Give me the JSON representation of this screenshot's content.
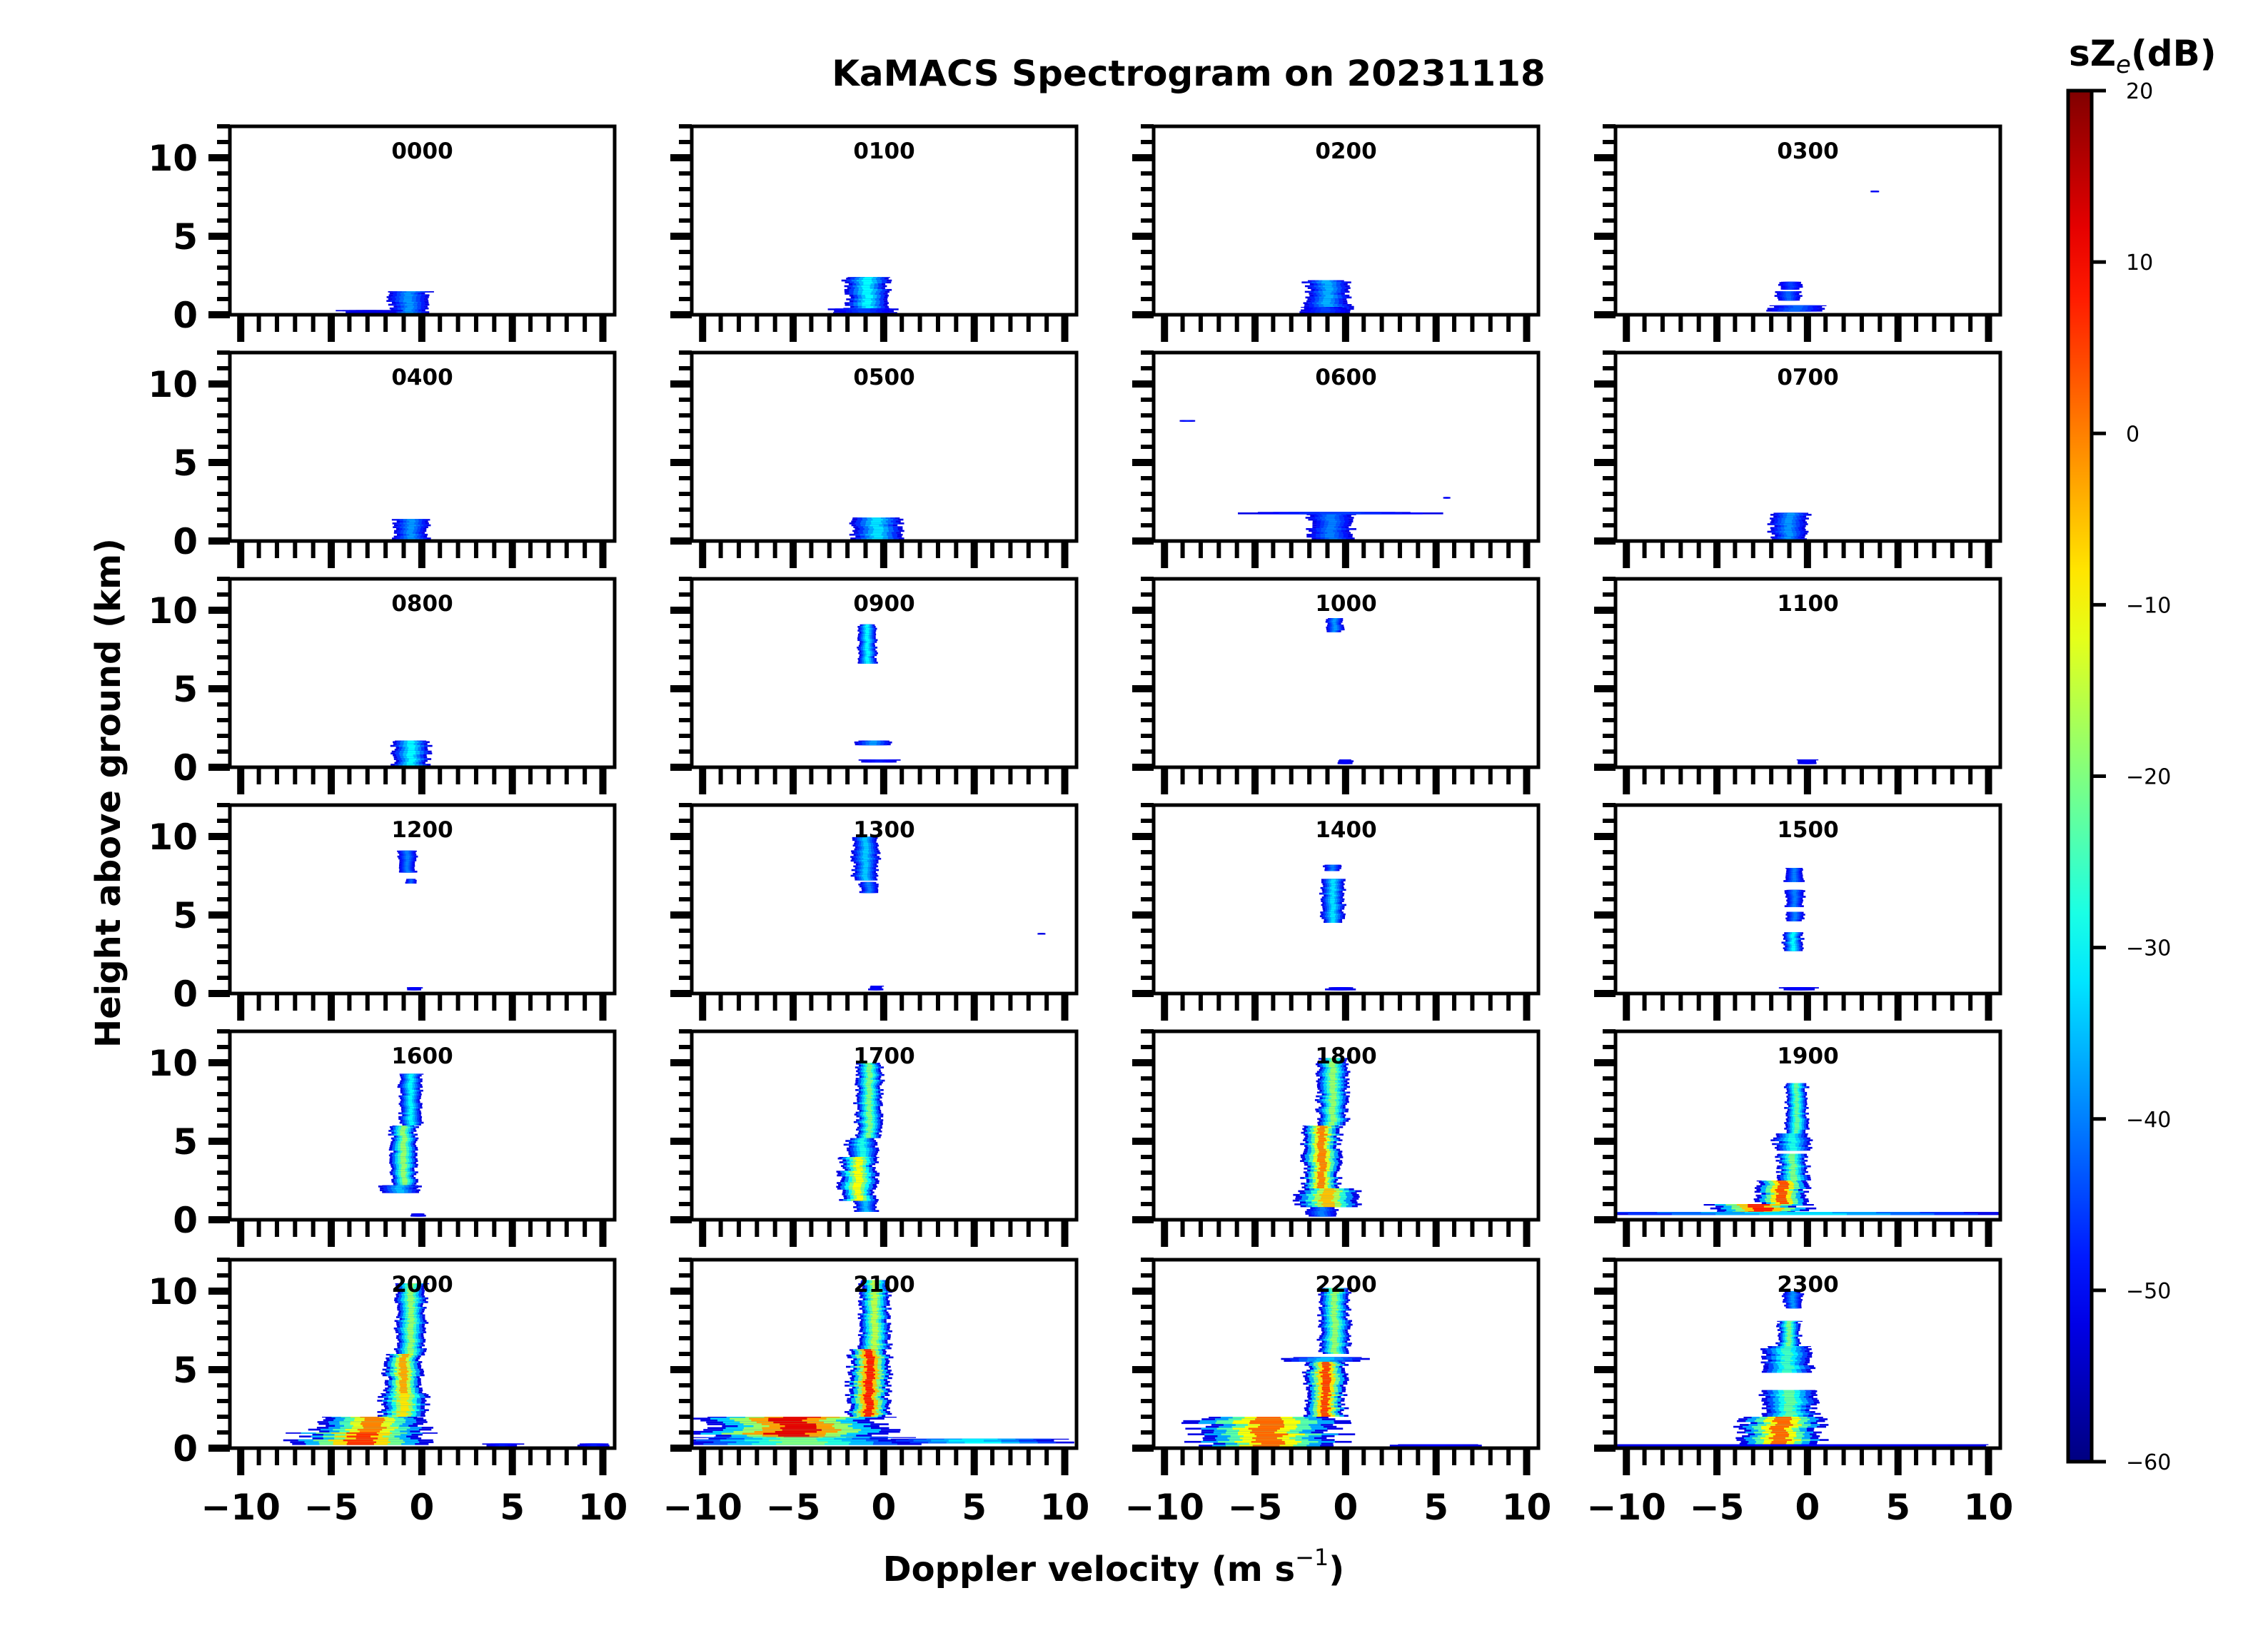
{
  "chart_data": {
    "type": "heatmap",
    "title": "KaMACS Spectrogram on 20231118",
    "xlabel": "Doppler velocity (m s",
    "xlabel_superscript": "−1",
    "xlabel_close": ")",
    "ylabel": "Height above ground (km)",
    "xlim": [
      -10.6,
      10.65
    ],
    "ylim": [
      0,
      12
    ],
    "x_major_ticks": [
      -10,
      -5,
      0,
      5,
      10
    ],
    "x_tick_labels": [
      "−10",
      "−5",
      "0",
      "5",
      "10"
    ],
    "x_minor_step": 1,
    "y_major_ticks": [
      0,
      5,
      10
    ],
    "y_tick_labels": [
      "0",
      "5",
      "10"
    ],
    "y_minor_step": 1,
    "grid": false,
    "layout": {
      "rows": 6,
      "cols": 4
    },
    "colorbar": {
      "title_main": "sZ",
      "title_sub": "e",
      "title_unit": "(dB)",
      "colormap": "jet",
      "range": [
        -60,
        20
      ],
      "ticks": [
        20,
        10,
        0,
        -10,
        -20,
        -30,
        -40,
        -50,
        -60
      ],
      "tick_labels": [
        "20",
        "10",
        "0",
        "−10",
        "−20",
        "−30",
        "−40",
        "−50",
        "−60"
      ],
      "placement": "right"
    },
    "panels": [
      {
        "label": "0000",
        "layers": [
          {
            "h": [
              0.1,
              1.5
            ],
            "v": -0.7,
            "w": 1.1,
            "dbz": -38
          },
          {
            "h": [
              0.1,
              0.3
            ],
            "v": -2.8,
            "w": 1.6,
            "dbz": -52
          }
        ]
      },
      {
        "label": "0100",
        "layers": [
          {
            "h": [
              0.2,
              2.4
            ],
            "v": -0.9,
            "w": 1.2,
            "dbz": -30
          },
          {
            "h": [
              0.05,
              0.4
            ],
            "v": -1.0,
            "w": 1.8,
            "dbz": -45
          }
        ]
      },
      {
        "label": "0200",
        "layers": [
          {
            "h": [
              0.2,
              2.2
            ],
            "v": -1.0,
            "w": 1.2,
            "dbz": -36
          },
          {
            "h": [
              0.1,
              0.5
            ],
            "v": -1.2,
            "w": 1.3,
            "dbz": -45
          }
        ]
      },
      {
        "label": "0300",
        "layers": [
          {
            "h": [
              1.6,
              2.1
            ],
            "v": -0.9,
            "w": 0.6,
            "dbz": -45
          },
          {
            "h": [
              0.9,
              1.5
            ],
            "v": -1.0,
            "w": 0.7,
            "dbz": -42
          },
          {
            "h": [
              0.2,
              0.6
            ],
            "v": -0.6,
            "w": 1.6,
            "dbz": -42
          },
          {
            "h": [
              7.8,
              7.9
            ],
            "v": 3.7,
            "w": 0.25,
            "dbz": -50
          }
        ]
      },
      {
        "label": "0400",
        "layers": [
          {
            "h": [
              0.1,
              1.4
            ],
            "v": -0.6,
            "w": 1.0,
            "dbz": -38
          }
        ]
      },
      {
        "label": "0500",
        "layers": [
          {
            "h": [
              0.1,
              1.5
            ],
            "v": -0.4,
            "w": 1.3,
            "dbz": -32
          }
        ]
      },
      {
        "label": "0600",
        "layers": [
          {
            "h": [
              1.7,
              1.85
            ],
            "v": -0.5,
            "w": 5.0,
            "dbz": -45
          },
          {
            "h": [
              0.1,
              1.7
            ],
            "v": -0.8,
            "w": 1.2,
            "dbz": -40
          },
          {
            "h": [
              7.6,
              7.7
            ],
            "v": -8.7,
            "w": 0.5,
            "dbz": -48
          },
          {
            "h": [
              2.7,
              2.8
            ],
            "v": 5.6,
            "w": 0.2,
            "dbz": -50
          }
        ]
      },
      {
        "label": "0700",
        "layers": [
          {
            "h": [
              0.05,
              1.8
            ],
            "v": -1.0,
            "w": 1.0,
            "dbz": -38
          }
        ]
      },
      {
        "label": "0800",
        "layers": [
          {
            "h": [
              0.1,
              1.7
            ],
            "v": -0.6,
            "w": 1.0,
            "dbz": -30
          }
        ]
      },
      {
        "label": "0900",
        "layers": [
          {
            "h": [
              6.6,
              9.1
            ],
            "v": -0.9,
            "w": 0.5,
            "dbz": -30
          },
          {
            "h": [
              1.4,
              1.7
            ],
            "v": -0.5,
            "w": 1.0,
            "dbz": -38
          },
          {
            "h": [
              0.3,
              0.5
            ],
            "v": -0.3,
            "w": 1.0,
            "dbz": -48
          }
        ]
      },
      {
        "label": "1000",
        "layers": [
          {
            "h": [
              8.6,
              9.5
            ],
            "v": -0.6,
            "w": 0.45,
            "dbz": -38
          },
          {
            "h": [
              0.2,
              0.5
            ],
            "v": 0.0,
            "w": 0.4,
            "dbz": -50
          }
        ]
      },
      {
        "label": "1100",
        "layers": [
          {
            "h": [
              0.2,
              0.5
            ],
            "v": 0.0,
            "w": 0.6,
            "dbz": -50
          }
        ]
      },
      {
        "label": "1200",
        "layers": [
          {
            "h": [
              7.7,
              9.1
            ],
            "v": -0.8,
            "w": 0.5,
            "dbz": -40
          },
          {
            "h": [
              7.0,
              7.3
            ],
            "v": -0.6,
            "w": 0.3,
            "dbz": -42
          },
          {
            "h": [
              0.2,
              0.4
            ],
            "v": -0.4,
            "w": 0.4,
            "dbz": -50
          }
        ]
      },
      {
        "label": "1300",
        "layers": [
          {
            "h": [
              7.2,
              10.0
            ],
            "v": -1.0,
            "w": 0.7,
            "dbz": -34
          },
          {
            "h": [
              6.4,
              7.1
            ],
            "v": -0.8,
            "w": 0.5,
            "dbz": -40
          },
          {
            "h": [
              3.75,
              3.85
            ],
            "v": 8.7,
            "w": 0.2,
            "dbz": -52
          },
          {
            "h": [
              0.2,
              0.5
            ],
            "v": -0.4,
            "w": 0.4,
            "dbz": -50
          }
        ]
      },
      {
        "label": "1400",
        "layers": [
          {
            "h": [
              7.8,
              8.2
            ],
            "v": -0.7,
            "w": 0.5,
            "dbz": -40
          },
          {
            "h": [
              4.5,
              7.3
            ],
            "v": -0.7,
            "w": 0.6,
            "dbz": -32
          },
          {
            "h": [
              0.2,
              0.4
            ],
            "v": -0.3,
            "w": 0.8,
            "dbz": -50
          }
        ]
      },
      {
        "label": "1500",
        "layers": [
          {
            "h": [
              7.1,
              8.0
            ],
            "v": -0.7,
            "w": 0.5,
            "dbz": -40
          },
          {
            "h": [
              5.5,
              6.6
            ],
            "v": -0.7,
            "w": 0.5,
            "dbz": -40
          },
          {
            "h": [
              4.6,
              5.2
            ],
            "v": -0.7,
            "w": 0.5,
            "dbz": -40
          },
          {
            "h": [
              2.7,
              3.9
            ],
            "v": -0.8,
            "w": 0.5,
            "dbz": -30
          },
          {
            "h": [
              0.2,
              0.4
            ],
            "v": -0.4,
            "w": 1.0,
            "dbz": -50
          }
        ]
      },
      {
        "label": "1600",
        "layers": [
          {
            "h": [
              6.0,
              9.3
            ],
            "v": -0.6,
            "w": 0.6,
            "dbz": -30
          },
          {
            "h": [
              2.0,
              6.0
            ],
            "v": -1.0,
            "w": 0.7,
            "dbz": -18
          },
          {
            "h": [
              1.7,
              2.2
            ],
            "v": -1.2,
            "w": 1.1,
            "dbz": -35
          },
          {
            "h": [
              0.2,
              0.4
            ],
            "v": -0.2,
            "w": 0.4,
            "dbz": -50
          }
        ]
      },
      {
        "label": "1700",
        "layers": [
          {
            "h": [
              5.2,
              10.0
            ],
            "v": -0.8,
            "w": 0.7,
            "dbz": -20
          },
          {
            "h": [
              4.0,
              5.2
            ],
            "v": -1.2,
            "w": 0.8,
            "dbz": -28
          },
          {
            "h": [
              1.2,
              4.0
            ],
            "v": -1.4,
            "w": 1.0,
            "dbz": -10
          },
          {
            "h": [
              0.5,
              1.2
            ],
            "v": -1.0,
            "w": 0.6,
            "dbz": -35
          }
        ]
      },
      {
        "label": "1800",
        "layers": [
          {
            "h": [
              6.0,
              10.3
            ],
            "v": -0.7,
            "w": 0.8,
            "dbz": -18
          },
          {
            "h": [
              2.0,
              6.0
            ],
            "v": -1.3,
            "w": 1.0,
            "dbz": 0
          },
          {
            "h": [
              0.8,
              2.0
            ],
            "v": -1.0,
            "w": 1.6,
            "dbz": -5
          },
          {
            "h": [
              0.2,
              0.8
            ],
            "v": -1.3,
            "w": 0.8,
            "dbz": -40
          }
        ]
      },
      {
        "label": "1900",
        "layers": [
          {
            "h": [
              5.5,
              8.7
            ],
            "v": -0.6,
            "w": 0.6,
            "dbz": -22
          },
          {
            "h": [
              4.4,
              5.5
            ],
            "v": -0.8,
            "w": 1.0,
            "dbz": -28
          },
          {
            "h": [
              2.5,
              4.2
            ],
            "v": -0.8,
            "w": 0.8,
            "dbz": -20
          },
          {
            "h": [
              1.0,
              2.5
            ],
            "v": -1.4,
            "w": 1.4,
            "dbz": 4
          },
          {
            "h": [
              0.3,
              1.0
            ],
            "v": -2.6,
            "w": 2.6,
            "dbz": 8
          },
          {
            "h": [
              0.3,
              0.5
            ],
            "v": 0.0,
            "w": 10.5,
            "dbz": -32
          }
        ]
      },
      {
        "label": "2000",
        "layers": [
          {
            "h": [
              6.0,
              10.5
            ],
            "v": -0.6,
            "w": 0.8,
            "dbz": -18
          },
          {
            "h": [
              3.5,
              6.0
            ],
            "v": -1.0,
            "w": 1.0,
            "dbz": -3
          },
          {
            "h": [
              2.0,
              3.5
            ],
            "v": -1.0,
            "w": 1.3,
            "dbz": -8
          },
          {
            "h": [
              1.0,
              2.0
            ],
            "v": -2.6,
            "w": 2.9,
            "dbz": 0
          },
          {
            "h": [
              0.2,
              1.0
            ],
            "v": -3.2,
            "w": 3.6,
            "dbz": 6
          },
          {
            "h": [
              0.1,
              0.3
            ],
            "v": 4.5,
            "w": 1.0,
            "dbz": -48
          },
          {
            "h": [
              0.1,
              0.3
            ],
            "v": 9.5,
            "w": 0.8,
            "dbz": -48
          }
        ]
      },
      {
        "label": "2100",
        "layers": [
          {
            "h": [
              6.3,
              10.7
            ],
            "v": -0.5,
            "w": 0.8,
            "dbz": -15
          },
          {
            "h": [
              2.0,
              6.3
            ],
            "v": -0.8,
            "w": 1.1,
            "dbz": 8
          },
          {
            "h": [
              0.5,
              2.0
            ],
            "v": -5.0,
            "w": 5.0,
            "dbz": 12
          },
          {
            "h": [
              0.2,
              0.7
            ],
            "v": -4.5,
            "w": 6.0,
            "dbz": -20
          },
          {
            "h": [
              0.3,
              0.6
            ],
            "v": 5.0,
            "w": 5.5,
            "dbz": -30
          }
        ]
      },
      {
        "label": "2200",
        "layers": [
          {
            "h": [
              6.0,
              10.2
            ],
            "v": -0.6,
            "w": 0.8,
            "dbz": -18
          },
          {
            "h": [
              5.5,
              5.8
            ],
            "v": -1.2,
            "w": 2.2,
            "dbz": -35
          },
          {
            "h": [
              2.0,
              5.5
            ],
            "v": -1.1,
            "w": 1.1,
            "dbz": 5
          },
          {
            "h": [
              0.1,
              2.0
            ],
            "v": -4.2,
            "w": 4.0,
            "dbz": 2
          },
          {
            "h": [
              0.1,
              0.25
            ],
            "v": 5.0,
            "w": 2.5,
            "dbz": -50
          }
        ]
      },
      {
        "label": "2300",
        "layers": [
          {
            "h": [
              8.9,
              10.0
            ],
            "v": -0.8,
            "w": 0.5,
            "dbz": -38
          },
          {
            "h": [
              6.5,
              8.1
            ],
            "v": -1.0,
            "w": 0.6,
            "dbz": -20
          },
          {
            "h": [
              4.8,
              6.5
            ],
            "v": -1.1,
            "w": 1.3,
            "dbz": -25
          },
          {
            "h": [
              2.0,
              3.7
            ],
            "v": -1.0,
            "w": 1.4,
            "dbz": -22
          },
          {
            "h": [
              0.1,
              2.0
            ],
            "v": -1.5,
            "w": 2.2,
            "dbz": 2
          },
          {
            "h": [
              0.1,
              0.25
            ],
            "v": 0.0,
            "w": 10.5,
            "dbz": -50
          }
        ]
      }
    ]
  }
}
